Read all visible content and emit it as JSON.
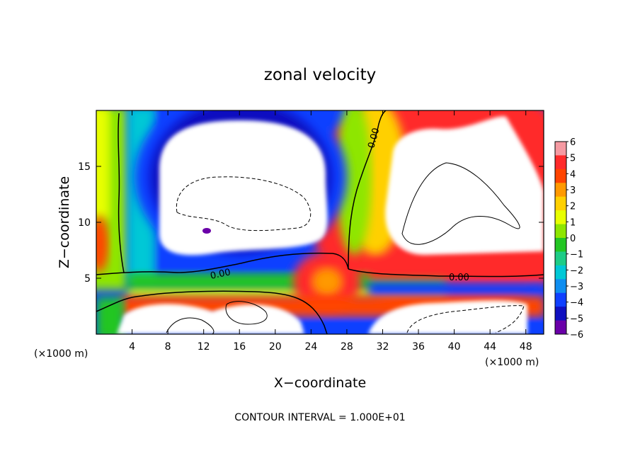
{
  "chart_data": {
    "type": "heatmap",
    "title": "zonal velocity",
    "xlabel": "X−coordinate",
    "ylabel": "Z−coordinate",
    "x_unit_left": "(×1000 m)",
    "x_unit_right": "(×1000 m)",
    "footer": "CONTOUR INTERVAL = 1.000E+01",
    "xlim": [
      0,
      50
    ],
    "ylim": [
      0,
      20
    ],
    "x_ticks": [
      4,
      8,
      12,
      16,
      20,
      24,
      28,
      32,
      36,
      40,
      44,
      48
    ],
    "x_tick_labels": [
      "4",
      "8",
      "12",
      "16",
      "20",
      "24",
      "28",
      "32",
      "36",
      "40",
      "44",
      "48"
    ],
    "y_ticks": [
      5,
      10,
      15
    ],
    "y_tick_labels": [
      "5",
      "10",
      "15"
    ],
    "colorbar": {
      "min": -6,
      "max": 6,
      "levels": [
        6,
        5,
        4,
        3,
        2,
        1,
        0,
        -1,
        -2,
        -3,
        -4,
        -5,
        -6
      ],
      "labels": [
        "6",
        "5",
        "4",
        "3",
        "2",
        "1",
        "0",
        "−1",
        "−2",
        "−3",
        "−4",
        "−5",
        "−6"
      ],
      "colors": [
        "#f59aa2",
        "#ff2a2a",
        "#ff4400",
        "#ff9900",
        "#ffd000",
        "#e8ff00",
        "#8ee600",
        "#23c623",
        "#1ecc86",
        "#00c8d6",
        "#0f8ef0",
        "#1040ff",
        "#1010c0",
        "#6a00a8"
      ]
    },
    "contour_labels": [
      "0.00",
      "0.00",
      "0.00"
    ],
    "contour_interval": "1.000E+01",
    "grid": false,
    "legend": "colorbar right"
  }
}
